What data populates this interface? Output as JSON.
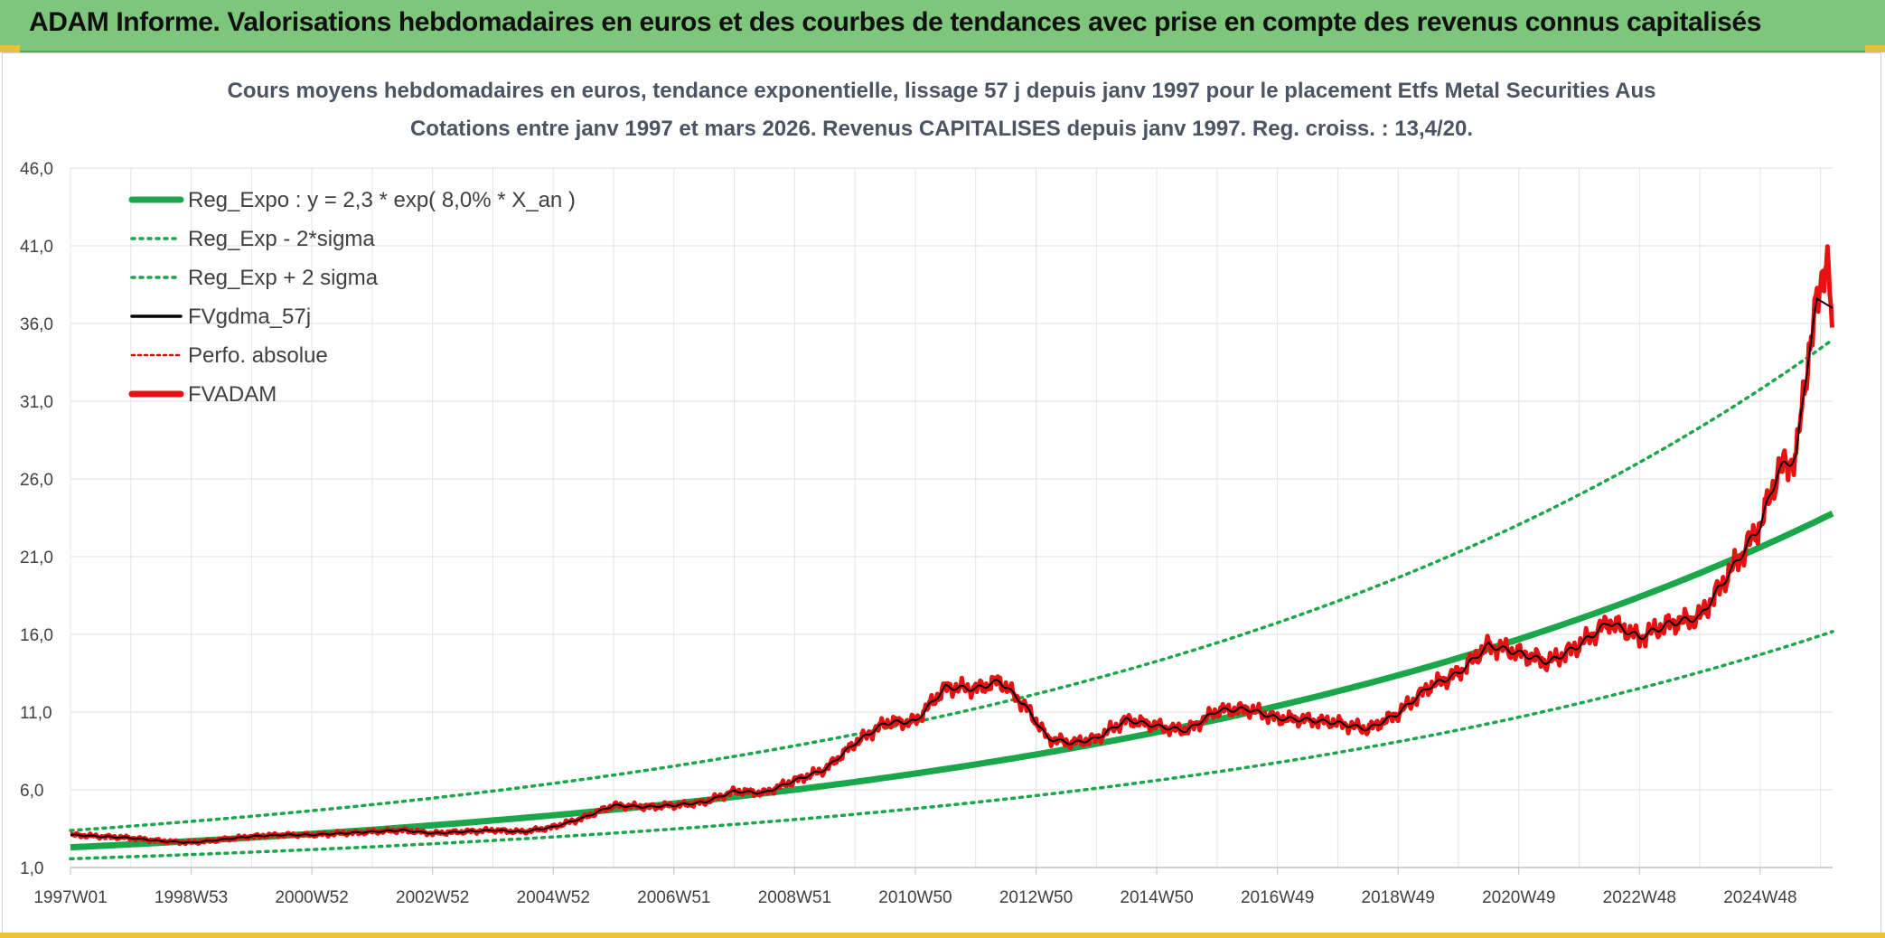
{
  "banner": {
    "title": "ADAM Informe. Valorisations hebdomadaires en euros et des courbes de tendances avec prise en compte des revenus connus capitalisés"
  },
  "chart_data": {
    "type": "line",
    "title": "Cours moyens hebdomadaires en euros, tendance exponentielle, lissage 57 j depuis janv 1997 pour le placement Etfs Metal Securities Aus",
    "subtitle": "Cotations entre janv 1997 et mars 2026. Revenus CAPITALISES depuis janv 1997. Reg. croiss. : 13,4/20.",
    "xlabel": "",
    "ylabel": "",
    "ylim": [
      1.0,
      46.0
    ],
    "xlim": [
      1997.0,
      2026.2
    ],
    "grid": true,
    "legend_position": "top-left",
    "y_ticks": [
      "1,0",
      "6,0",
      "11,0",
      "16,0",
      "21,0",
      "26,0",
      "31,0",
      "36,0",
      "41,0",
      "46,0"
    ],
    "x_ticks": [
      {
        "label": "1997W01",
        "x": 1997.0
      },
      {
        "label": "1998W53",
        "x": 1999.0
      },
      {
        "label": "2000W52",
        "x": 2001.0
      },
      {
        "label": "2002W52",
        "x": 2003.0
      },
      {
        "label": "2004W52",
        "x": 2005.0
      },
      {
        "label": "2006W51",
        "x": 2007.0
      },
      {
        "label": "2008W51",
        "x": 2009.0
      },
      {
        "label": "2010W50",
        "x": 2011.0
      },
      {
        "label": "2012W50",
        "x": 2013.0
      },
      {
        "label": "2014W50",
        "x": 2015.0
      },
      {
        "label": "2016W49",
        "x": 2017.0
      },
      {
        "label": "2018W49",
        "x": 2019.0
      },
      {
        "label": "2020W49",
        "x": 2021.0
      },
      {
        "label": "2022W48",
        "x": 2023.0
      },
      {
        "label": "2024W48",
        "x": 2025.0
      }
    ],
    "trend": {
      "a": 2.3,
      "rate": 0.08,
      "x0": 1997.0,
      "sigma_factor": 1.47
    },
    "series": [
      {
        "name": "Reg_Expo : y = 2,3 * exp( 8,0% *  X_an )",
        "style": "solid-thick",
        "color": "#1aa64a",
        "kind": "trend"
      },
      {
        "name": "Reg_Exp - 2*sigma",
        "style": "dotted",
        "color": "#1aa64a",
        "kind": "trend_low"
      },
      {
        "name": "Reg_Exp + 2 sigma",
        "style": "dotted",
        "color": "#1aa64a",
        "kind": "trend_high"
      },
      {
        "name": "FVgdma_57j",
        "style": "solid",
        "color": "#000000",
        "kind": "smooth"
      },
      {
        "name": "Perfo. absolue",
        "style": "dotted-thin",
        "color": "#e00000",
        "kind": "legend_only"
      },
      {
        "name": "FVADAM",
        "style": "solid-thick",
        "color": "#e81010",
        "kind": "price"
      }
    ],
    "price_points": {
      "x": [
        1997.0,
        1997.5,
        1998.0,
        1998.5,
        1999.0,
        1999.5,
        2000.0,
        2000.5,
        2001.0,
        2001.5,
        2002.0,
        2002.5,
        2003.0,
        2003.5,
        2004.0,
        2004.5,
        2005.0,
        2005.5,
        2006.0,
        2006.5,
        2007.0,
        2007.5,
        2008.0,
        2008.5,
        2009.0,
        2009.5,
        2010.0,
        2010.5,
        2011.0,
        2011.5,
        2012.0,
        2012.4,
        2012.8,
        2013.2,
        2013.6,
        2014.0,
        2014.5,
        2015.0,
        2015.5,
        2016.0,
        2016.5,
        2017.0,
        2017.5,
        2018.0,
        2018.5,
        2019.0,
        2019.5,
        2020.0,
        2020.5,
        2021.0,
        2021.5,
        2022.0,
        2022.5,
        2023.0,
        2023.5,
        2024.0,
        2024.5,
        2025.0,
        2025.3,
        2025.6,
        2025.8,
        2026.0,
        2026.1,
        2026.2
      ],
      "y": [
        3.1,
        3.0,
        2.9,
        2.7,
        2.6,
        2.8,
        3.0,
        3.1,
        3.1,
        3.2,
        3.3,
        3.4,
        3.2,
        3.3,
        3.4,
        3.3,
        3.6,
        4.2,
        5.0,
        4.9,
        5.0,
        5.2,
        5.9,
        5.8,
        6.6,
        7.3,
        9.0,
        10.3,
        10.4,
        12.6,
        12.5,
        13.0,
        11.5,
        9.3,
        9.0,
        9.3,
        10.5,
        10.1,
        9.8,
        11.1,
        11.2,
        10.6,
        10.5,
        10.3,
        9.9,
        10.9,
        12.6,
        13.5,
        15.3,
        14.8,
        14.2,
        15.3,
        16.8,
        15.8,
        16.7,
        17.1,
        20.0,
        23.0,
        26.5,
        27.5,
        34.0,
        38.5,
        40.8,
        35.5
      ]
    }
  }
}
